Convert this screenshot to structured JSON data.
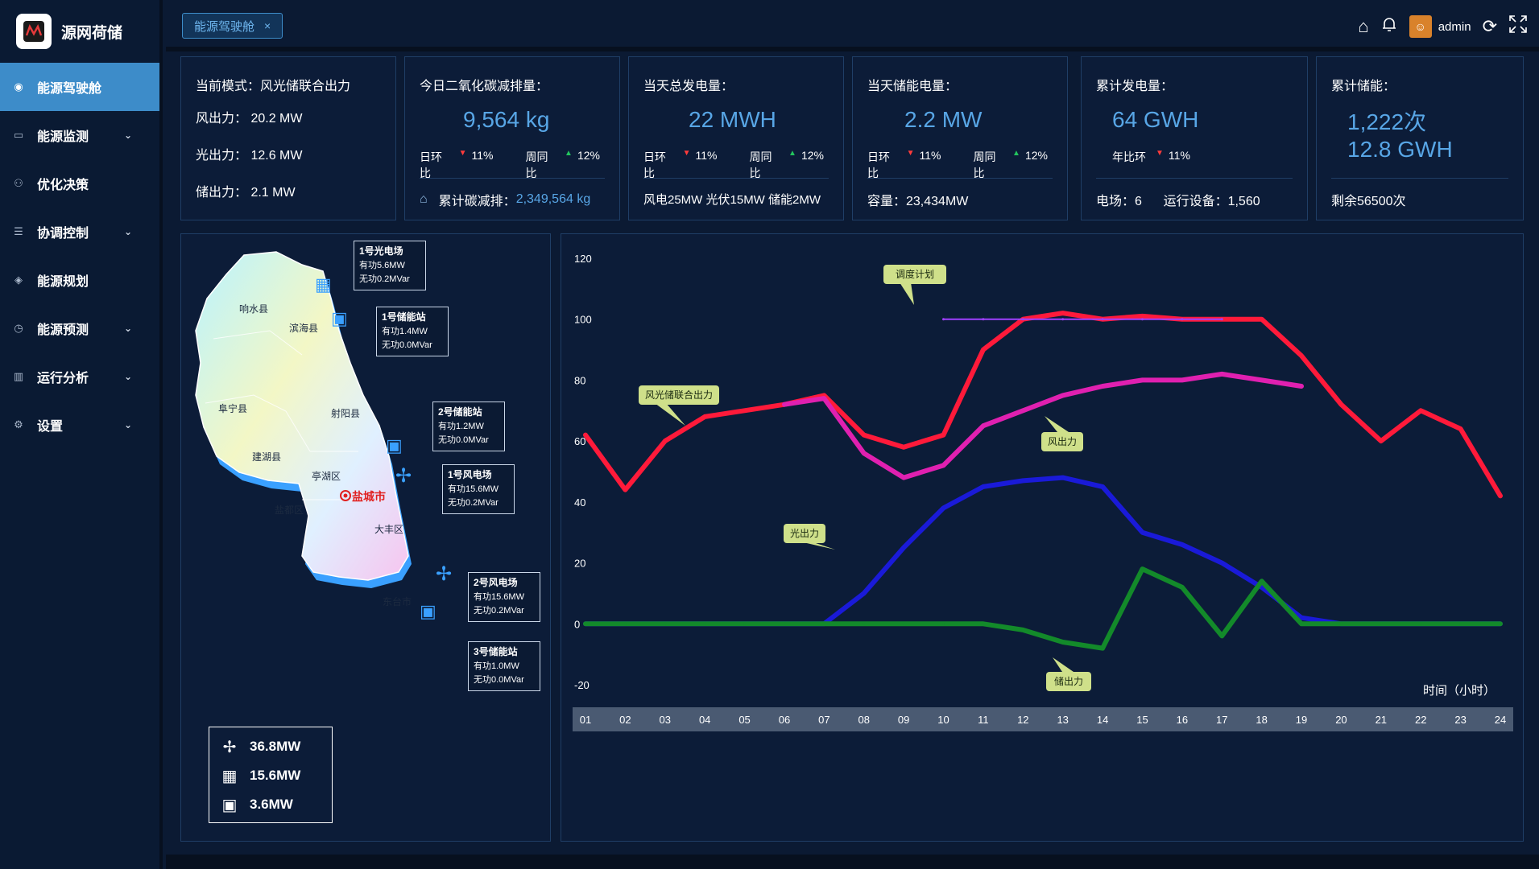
{
  "sidebar": {
    "brand": "源网荷储",
    "items": [
      {
        "label": "能源驾驶舱",
        "icon": "◉",
        "chev": ""
      },
      {
        "label": "能源监测",
        "icon": "▭",
        "chev": "⌄"
      },
      {
        "label": "优化决策",
        "icon": "⚇",
        "chev": ""
      },
      {
        "label": "协调控制",
        "icon": "☰",
        "chev": "⌄"
      },
      {
        "label": "能源规划",
        "icon": "◈",
        "chev": ""
      },
      {
        "label": "能源预测",
        "icon": "◷",
        "chev": "⌄"
      },
      {
        "label": "运行分析",
        "icon": "▥",
        "chev": "⌄"
      },
      {
        "label": "设置",
        "icon": "⚙",
        "chev": "⌄"
      }
    ]
  },
  "topbar": {
    "tab_label": "能源驾驶舱",
    "tab_close": "×",
    "user": "admin"
  },
  "cards": {
    "mode": {
      "label": "当前模式：",
      "value": "风光储联合出力",
      "rows": [
        "风出力：  20.2 MW",
        "光出力：  12.6 MW",
        "储出力：  2.1 MW"
      ]
    },
    "co2": {
      "title": "今日二氧化碳减排量：",
      "value": "9,564 kg",
      "s1": "日环比",
      "s1v": "11%",
      "s2": "周同比",
      "s2v": "12%",
      "foot_label": "累计碳减排：",
      "foot_value": "2,349,564 kg"
    },
    "gen": {
      "title": "当天总发电量：",
      "value": "22 MWH",
      "s1": "日环比",
      "s1v": "11%",
      "s2": "周同比",
      "s2v": "12%",
      "foot": "风电25MW  光伏15MW  储能2MW"
    },
    "store": {
      "title": "当天储能电量：",
      "value": "2.2 MW",
      "s1": "日环比",
      "s1v": "11%",
      "s2": "周同比",
      "s2v": "12%",
      "foot": "容量：23,434MW"
    },
    "total": {
      "title": "累计发电量：",
      "value": "64 GWH",
      "s1": "年比环",
      "s1v": "11%",
      "foot": "电场：6      运行设备：1,560"
    },
    "cum": {
      "title": "累计储能：",
      "value1": "1,222次",
      "value2": "12.8 GWH",
      "foot": "剩余56500次"
    }
  },
  "map": {
    "districts": [
      "响水县",
      "滨海县",
      "阜宁县",
      "射阳县",
      "建湖县",
      "亭湖区",
      "盐城市",
      "盐都区",
      "大丰区",
      "东台市"
    ],
    "stations": [
      {
        "name": "1号光电场",
        "p": "有功5.6MW",
        "q": "无功0.2MVar"
      },
      {
        "name": "1号储能站",
        "p": "有功1.4MW",
        "q": "无功0.0MVar"
      },
      {
        "name": "2号储能站",
        "p": "有功1.2MW",
        "q": "无功0.0MVar"
      },
      {
        "name": "1号风电场",
        "p": "有功15.6MW",
        "q": "无功0.2MVar"
      },
      {
        "name": "2号风电场",
        "p": "有功15.6MW",
        "q": "无功0.2MVar"
      },
      {
        "name": "3号储能站",
        "p": "有功1.0MW",
        "q": "无功0.0MVar"
      }
    ],
    "legend": [
      "36.8MW",
      "15.6MW",
      "3.6MW"
    ]
  },
  "chart_data": {
    "type": "line",
    "xlabel": "时间（小时）",
    "ylabel": "",
    "ylim": [
      -20,
      120
    ],
    "yticks": [
      120,
      100,
      80,
      60,
      40,
      20,
      0,
      -20
    ],
    "categories": [
      "01",
      "02",
      "03",
      "04",
      "05",
      "06",
      "07",
      "08",
      "09",
      "10",
      "11",
      "12",
      "13",
      "14",
      "15",
      "16",
      "17",
      "18",
      "19",
      "20",
      "21",
      "22",
      "23",
      "24"
    ],
    "series": [
      {
        "name": "风光储联合出力",
        "color": "#ff1a3a",
        "values": [
          62,
          44,
          60,
          68,
          70,
          72,
          75,
          62,
          58,
          62,
          90,
          100,
          102,
          100,
          101,
          100,
          100,
          100,
          88,
          72,
          60,
          70,
          64,
          42
        ]
      },
      {
        "name": "风出力",
        "color": "#e020b0",
        "values": [
          null,
          null,
          null,
          null,
          null,
          72,
          74,
          56,
          48,
          52,
          65,
          70,
          75,
          78,
          80,
          80,
          82,
          80,
          78,
          null,
          null,
          null,
          null,
          null
        ]
      },
      {
        "name": "光出力",
        "color": "#1a1ad8",
        "values": [
          0,
          0,
          0,
          0,
          0,
          0,
          0,
          10,
          25,
          38,
          45,
          47,
          48,
          45,
          30,
          26,
          20,
          12,
          2,
          0,
          0,
          0,
          0,
          0
        ]
      },
      {
        "name": "储出力",
        "color": "#138a2a",
        "values": [
          0,
          0,
          0,
          0,
          0,
          0,
          0,
          0,
          0,
          0,
          0,
          -2,
          -6,
          -8,
          18,
          12,
          -4,
          14,
          0,
          0,
          0,
          0,
          0,
          0
        ]
      },
      {
        "name": "调度计划",
        "color": "#a040ff",
        "values": [
          null,
          null,
          null,
          null,
          null,
          null,
          null,
          null,
          null,
          100,
          100,
          100,
          100,
          100,
          100,
          100,
          100,
          null,
          null,
          null,
          null,
          null,
          null,
          null
        ]
      }
    ],
    "annotations": [
      "调度计划",
      "风光储联合出力",
      "风出力",
      "光出力",
      "储出力"
    ]
  }
}
